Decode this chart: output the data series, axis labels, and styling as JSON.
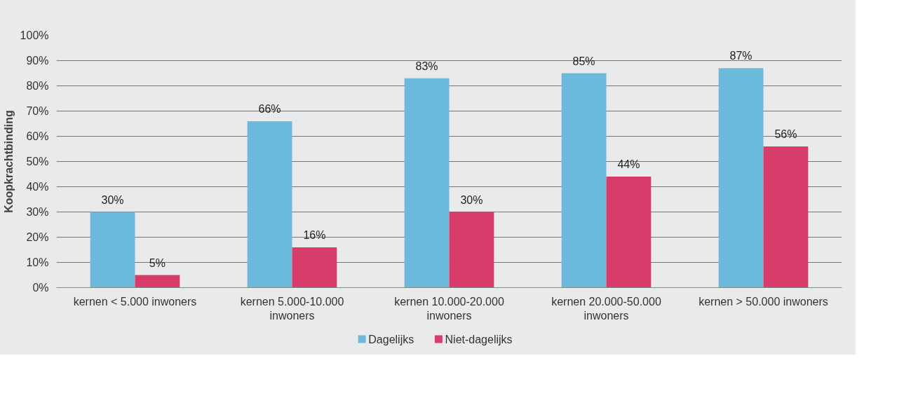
{
  "chart_data": {
    "type": "bar",
    "ylabel": "Koopkrachtbinding",
    "categories": [
      "kernen < 5.000 inwoners",
      "kernen 5.000-10.000 inwoners",
      "kernen 10.000-20.000 inwoners",
      "kernen 20.000-50.000 inwoners",
      "kernen > 50.000 inwoners"
    ],
    "series": [
      {
        "name": "Dagelijks",
        "color": "#6cbadb",
        "values": [
          30,
          66,
          83,
          85,
          87
        ],
        "value_labels": [
          "30%",
          "66%",
          "83%",
          "85%",
          "87%"
        ]
      },
      {
        "name": "Niet-dagelijks",
        "color": "#d83c6b",
        "values": [
          5,
          16,
          30,
          44,
          56
        ],
        "value_labels": [
          "5%",
          "16%",
          "30%",
          "44%",
          "56%"
        ]
      }
    ],
    "ylim": [
      0,
      100
    ],
    "yticks": [
      {
        "value": 0,
        "label": "0%"
      },
      {
        "value": 10,
        "label": "10%"
      },
      {
        "value": 20,
        "label": "20%"
      },
      {
        "value": 30,
        "label": "30%"
      },
      {
        "value": 40,
        "label": "40%"
      },
      {
        "value": 50,
        "label": "50%"
      },
      {
        "value": 60,
        "label": "60%"
      },
      {
        "value": 70,
        "label": "70%"
      },
      {
        "value": 80,
        "label": "80%"
      },
      {
        "value": 90,
        "label": "90%"
      },
      {
        "value": 100,
        "label": "100%"
      }
    ],
    "grid": "y",
    "legend": "bottom"
  }
}
